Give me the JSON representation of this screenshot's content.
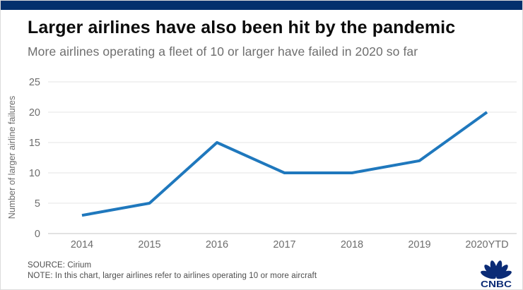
{
  "header": {
    "title": "Larger airlines have also been hit by the pandemic",
    "subtitle": "More airlines operating a fleet of 10 or larger have failed in 2020 so far"
  },
  "chart_data": {
    "type": "line",
    "title": "Larger airlines have also been hit by the pandemic",
    "subtitle": "More airlines operating a fleet of 10 or larger have failed in 2020 so far",
    "categories": [
      "2014",
      "2015",
      "2016",
      "2017",
      "2018",
      "2019",
      "2020YTD"
    ],
    "values": [
      3,
      5,
      15,
      10,
      10,
      12,
      20
    ],
    "xlabel": "",
    "ylabel": "Number of larger airline failures",
    "ylim": [
      0,
      25
    ],
    "yticks": [
      0,
      5,
      10,
      15,
      20,
      25
    ],
    "grid": true,
    "legend": false,
    "line_color": "#1f78bd"
  },
  "footer": {
    "source": "SOURCE: Cirium",
    "note": "NOTE: In this chart, larger airlines refer to airlines operating 10 or more aircraft"
  },
  "branding": {
    "logo_text": "CNBC",
    "logo_color": "#0b2b76"
  },
  "colors": {
    "top_bar": "#03306d",
    "grid_line": "#e4e4e4",
    "axis_zero_line": "#c4c4c4",
    "tick_text": "#6d6d6d"
  }
}
